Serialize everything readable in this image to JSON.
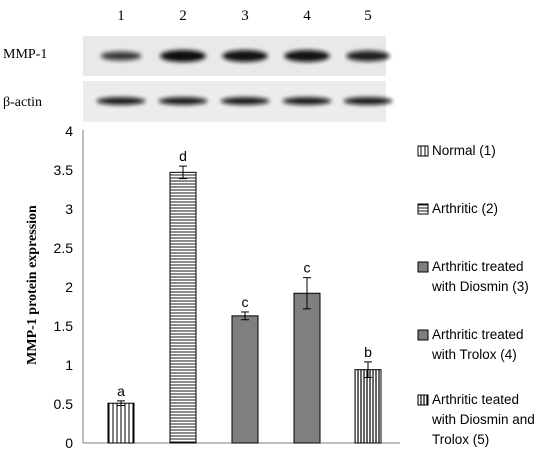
{
  "blot": {
    "lane_numbers": [
      "1",
      "2",
      "3",
      "4",
      "5"
    ],
    "rows": [
      {
        "label": "MMP-1",
        "band_intensity": [
          0.55,
          1.0,
          0.95,
          0.95,
          0.8
        ]
      },
      {
        "label": "β-actin",
        "band_intensity": [
          0.9,
          0.9,
          0.9,
          0.9,
          0.9
        ]
      }
    ]
  },
  "chart_data": {
    "type": "bar",
    "title": "",
    "xlabel": "",
    "ylabel": "MMP-1 protein expression",
    "ylim": [
      0,
      4
    ],
    "yticks": [
      "0",
      "0.5",
      "1",
      "1.5",
      "2",
      "2.5",
      "3",
      "3.5",
      "4"
    ],
    "grid": false,
    "legend_position": "right",
    "categories": [
      "Normal (1)",
      "Arthritic (2)",
      "Arthritic treated with Diosmin (3)",
      "Arthritic treated with Trolox (4)",
      "Arthritic teated with Diosmin and Trolox (5)"
    ],
    "values": [
      0.51,
      3.47,
      1.63,
      1.92,
      0.94
    ],
    "errors": [
      0.03,
      0.08,
      0.05,
      0.2,
      0.1
    ],
    "significance_letters": [
      "a",
      "d",
      "c",
      "c",
      "b"
    ],
    "legend": [
      [
        "Normal (1)"
      ],
      [
        "Arthritic (2)"
      ],
      [
        "Arthritic treated",
        "with Diosmin (3)"
      ],
      [
        "Arthritic treated",
        "with Trolox (4)"
      ],
      [
        "Arthritic teated",
        "with Diosmin and",
        "Trolox (5)"
      ]
    ],
    "fills": [
      "vlines",
      "hlines",
      "gray",
      "gray",
      "vlines-dense"
    ],
    "colors": {
      "bar_edge": "#000000",
      "gray_fill": "#7f7f7f",
      "axis": "#7f7f7f",
      "text": "#000000"
    }
  }
}
